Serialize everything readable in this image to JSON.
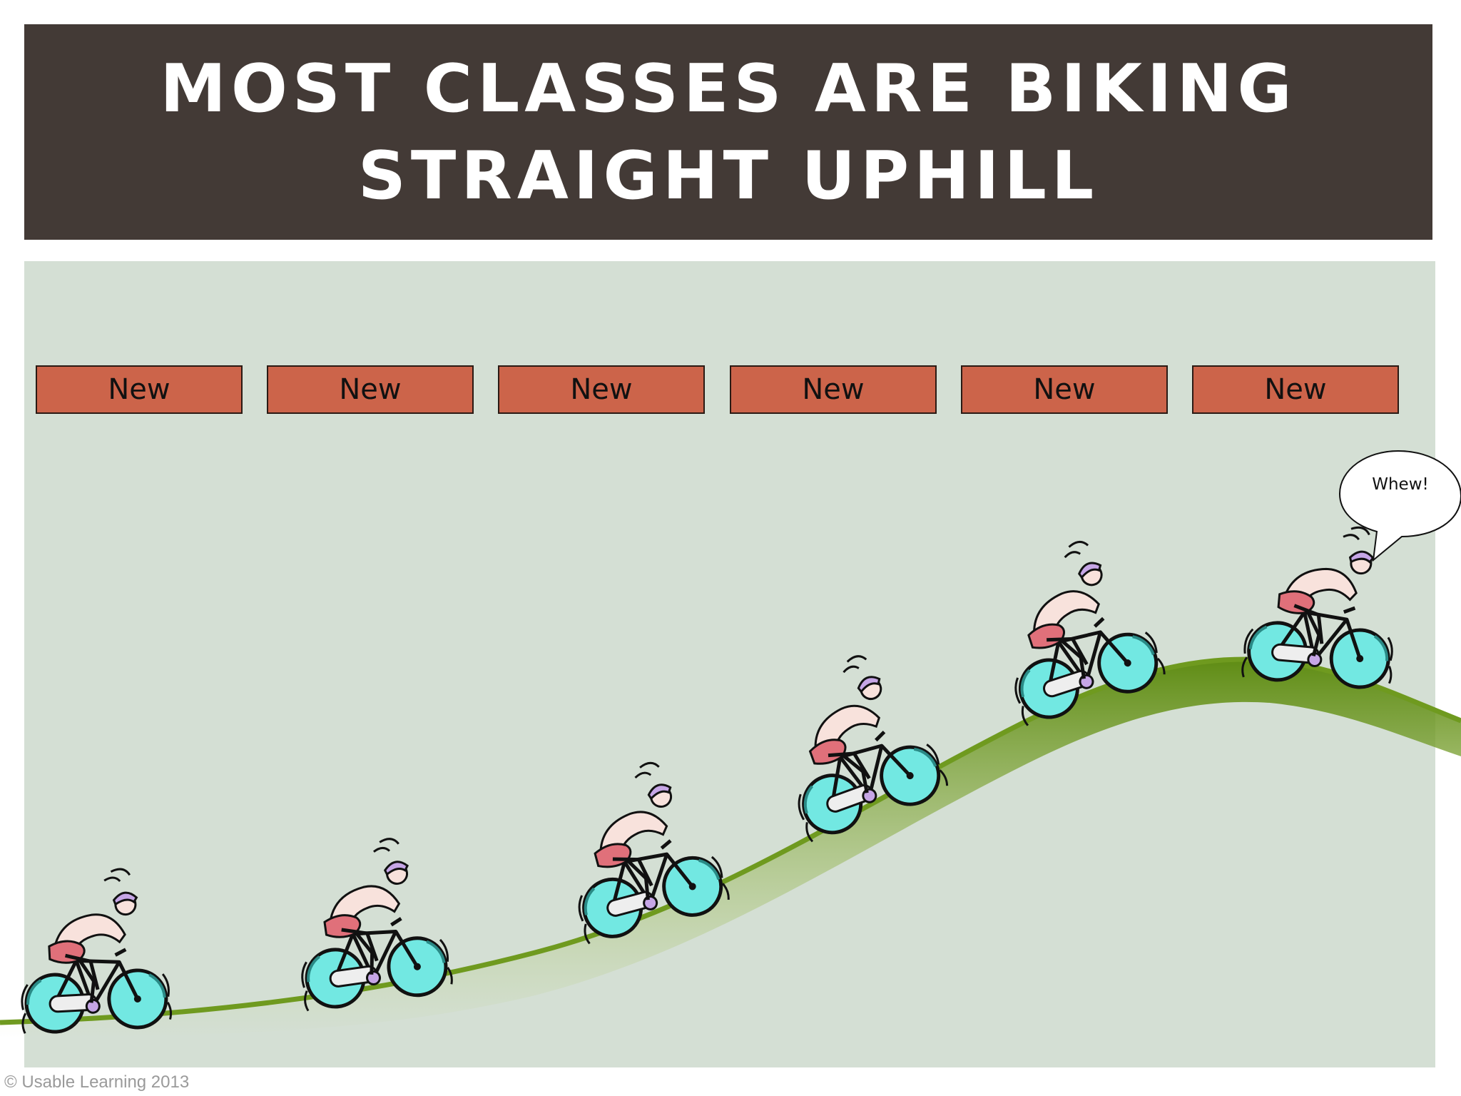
{
  "slide": {
    "title_line1": "MOST CLASSES ARE BIKING",
    "title_line2": "STRAIGHT UPHILL",
    "boxes": [
      {
        "label": "New"
      },
      {
        "label": "New"
      },
      {
        "label": "New"
      },
      {
        "label": "New"
      },
      {
        "label": "New"
      },
      {
        "label": "New"
      }
    ],
    "speech_bubble": "Whew!",
    "footer": "© Usable Learning 2013"
  },
  "colors": {
    "title_bar": "#433a36",
    "panel": "#d4dfd4",
    "box_fill": "#cc644a",
    "hill": "#6f9a1f",
    "wheel": "#6fe6e0",
    "rider_shorts": "#e0707a"
  },
  "icons": {
    "cyclist": "cyclist-icon",
    "speech": "speech-bubble-icon"
  }
}
